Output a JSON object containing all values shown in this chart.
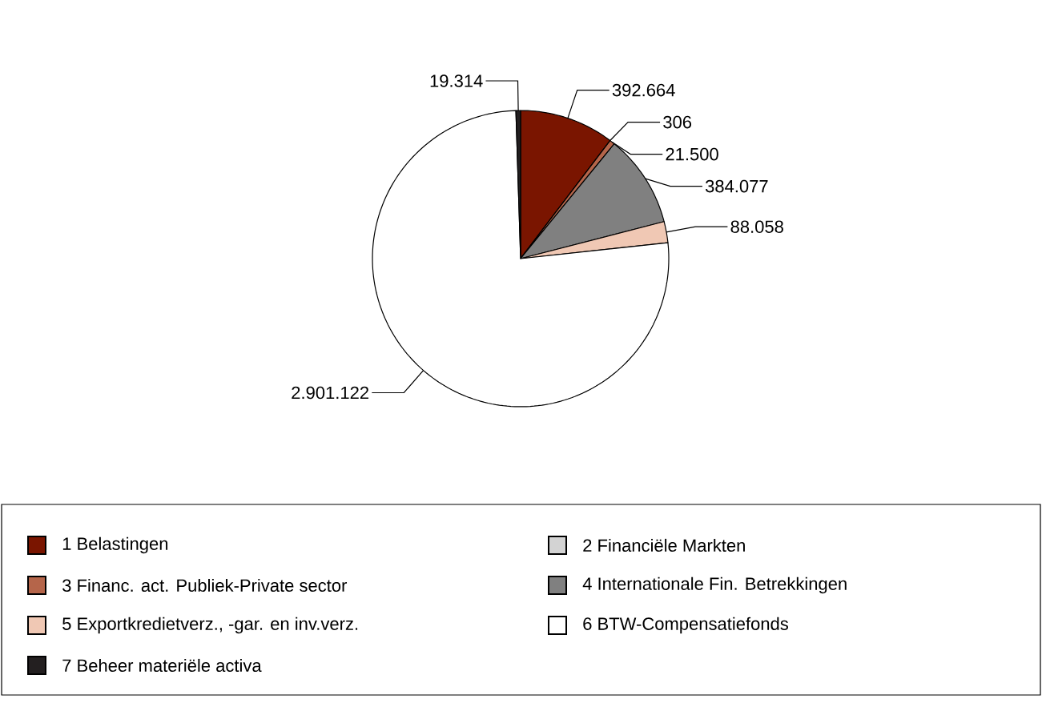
{
  "chart_data": {
    "type": "pie",
    "categories": [
      "1 Belastingen",
      "2 Financiële Markten",
      "3 Financ. act. Publiek-Private sector",
      "4 Internationale Fin. Betrekkingen",
      "5 Exportkredietverz., -gar. en inv.verz.",
      "6 BTW-Compensatiefonds",
      "7 Beheer materiële activa"
    ],
    "values": [
      392664,
      306,
      21500,
      384077,
      88058,
      2901122,
      19314
    ],
    "value_labels": [
      "392.664",
      "306",
      "21.500",
      "384.077",
      "88.058",
      "2.901.122",
      "19.314"
    ],
    "colors": [
      "#7a1500",
      "#d3d3d3",
      "#b5654a",
      "#808080",
      "#f0c8b4",
      "#ffffff",
      "#231f20"
    ],
    "legend": "bottom"
  }
}
